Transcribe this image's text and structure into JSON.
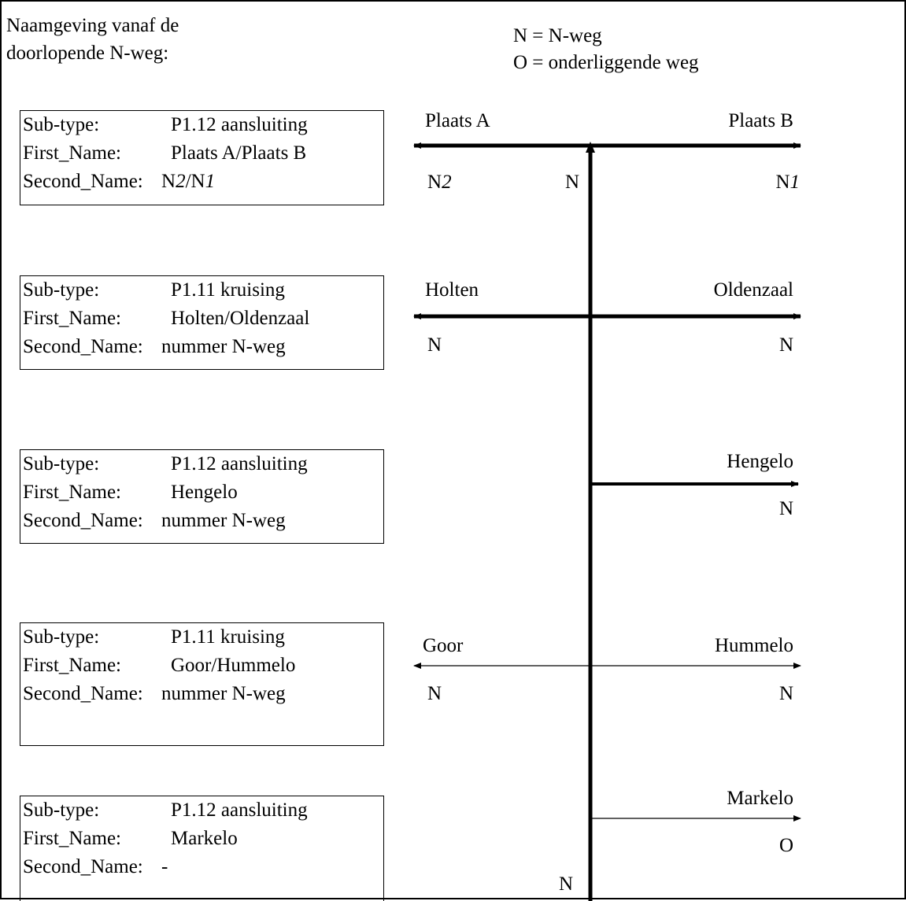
{
  "heading": {
    "line1": "Naamgeving vanaf de",
    "line2": "doorlopende N-weg:"
  },
  "legend": {
    "n": "N = N-weg",
    "o": "O = onderliggende weg"
  },
  "labels": {
    "sub_type": "Sub-type:",
    "first_name": "First_Name:",
    "second_name": "Second_Name:"
  },
  "boxes": [
    {
      "sub_type": "P1.12 aansluiting",
      "first_name": "Plaats A/Plaats B",
      "second_name_parts": [
        "N",
        "2",
        "/N",
        "1"
      ]
    },
    {
      "sub_type": "P1.11 kruising",
      "first_name": "Holten/Oldenzaal",
      "second_name": "nummer N-weg"
    },
    {
      "sub_type": "P1.12 aansluiting",
      "first_name": "Hengelo",
      "second_name": "nummer N-weg"
    },
    {
      "sub_type": "P1.11 kruising",
      "first_name": "Goor/Hummelo",
      "second_name": "nummer N-weg"
    },
    {
      "sub_type": "P1.12 aansluiting",
      "first_name": "Markelo",
      "second_name": "-"
    }
  ],
  "junctions": [
    {
      "left_place": "Plaats A",
      "right_place": "Plaats B",
      "left_road": [
        "N",
        "2"
      ],
      "right_road": [
        "N",
        "1"
      ],
      "main_road": "N"
    },
    {
      "left_place": "Holten",
      "right_place": "Oldenzaal",
      "left_road": "N",
      "right_road": "N"
    },
    {
      "right_place": "Hengelo",
      "right_road": "N"
    },
    {
      "left_place": "Goor",
      "right_place": "Hummelo",
      "left_road": "N",
      "right_road": "N"
    },
    {
      "right_place": "Markelo",
      "right_road": "O"
    }
  ],
  "bottom_road": "N",
  "colors": {
    "line": "#000000",
    "background": "#ffffff"
  }
}
